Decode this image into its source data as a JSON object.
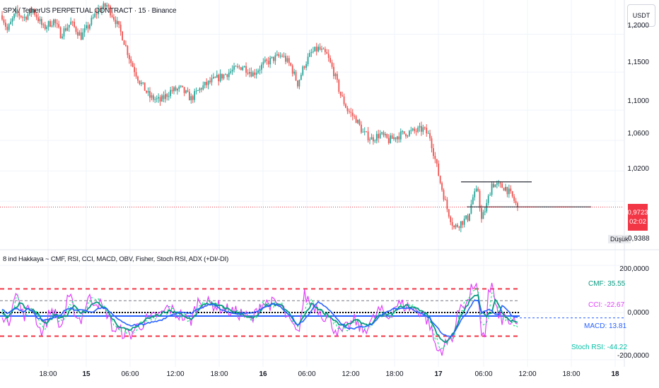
{
  "header": {
    "symbol_title": "SPX / TetherUS PERPETUAL CONTRACT · 15 · Binance",
    "currency_button": "USDT"
  },
  "price_axis": {
    "labels": [
      "1,2000",
      "1,1500",
      "1,1000",
      "1,0600",
      "1,0200",
      "0,9800"
    ],
    "current_price": "0,9723",
    "countdown": "02:02",
    "low_label": "Düşük",
    "low_value": "0,9388"
  },
  "indicator": {
    "title": "8 ind Hakkaya ~ CMF, RSI, CCI, MACD, OBV, Fisher, Stoch RSI, ADX (+DI/-DI)",
    "axis_labels": [
      "200,0000",
      "0,0000",
      "-200,0000"
    ],
    "labels": {
      "cmf": "CMF: 35.55",
      "cci": "CCI: -22.67",
      "macd": "MACD: 13.81",
      "stoch": "Stoch RSI: -44.22"
    }
  },
  "time_axis": {
    "labels": [
      "18:00",
      "15",
      "06:00",
      "12:00",
      "18:00",
      "16",
      "06:00",
      "12:00",
      "18:00",
      "17",
      "06:00",
      "12:00",
      "18:00",
      "18"
    ]
  },
  "colors": {
    "up": "#26a69a",
    "down": "#ef5350",
    "price_line": "#f23645",
    "cmf": "#089981",
    "cci": "#e040fb",
    "macd": "#2962ff",
    "stoch": "#00e676",
    "band": "#f23645"
  },
  "chart_data": {
    "type": "candlestick",
    "title": "SPX / TetherUS PERPETUAL CONTRACT · 15 · Binance",
    "interval": "15",
    "y_range": [
      0.918,
      1.245
    ],
    "y_ticks": [
      1.2,
      1.15,
      1.1,
      1.06,
      1.02,
      0.98
    ],
    "close_path": [
      {
        "t": 0,
        "p": 1.225
      },
      {
        "t": 3,
        "p": 1.205
      },
      {
        "t": 8,
        "p": 1.228
      },
      {
        "t": 13,
        "p": 1.222
      },
      {
        "t": 18,
        "p": 1.232
      },
      {
        "t": 24,
        "p": 1.208
      },
      {
        "t": 30,
        "p": 1.218
      },
      {
        "t": 34,
        "p": 1.2
      },
      {
        "t": 40,
        "p": 1.215
      },
      {
        "t": 46,
        "p": 1.197
      },
      {
        "t": 50,
        "p": 1.21
      },
      {
        "t": 56,
        "p": 1.232
      },
      {
        "t": 61,
        "p": 1.238
      },
      {
        "t": 66,
        "p": 1.218
      },
      {
        "t": 70,
        "p": 1.197
      },
      {
        "t": 75,
        "p": 1.163
      },
      {
        "t": 80,
        "p": 1.138
      },
      {
        "t": 86,
        "p": 1.117
      },
      {
        "t": 92,
        "p": 1.112
      },
      {
        "t": 98,
        "p": 1.125
      },
      {
        "t": 104,
        "p": 1.128
      },
      {
        "t": 110,
        "p": 1.115
      },
      {
        "t": 116,
        "p": 1.13
      },
      {
        "t": 122,
        "p": 1.138
      },
      {
        "t": 128,
        "p": 1.145
      },
      {
        "t": 134,
        "p": 1.152
      },
      {
        "t": 140,
        "p": 1.158
      },
      {
        "t": 146,
        "p": 1.148
      },
      {
        "t": 152,
        "p": 1.16
      },
      {
        "t": 158,
        "p": 1.168
      },
      {
        "t": 163,
        "p": 1.172
      },
      {
        "t": 168,
        "p": 1.158
      },
      {
        "t": 172,
        "p": 1.135
      },
      {
        "t": 176,
        "p": 1.16
      },
      {
        "t": 180,
        "p": 1.175
      },
      {
        "t": 184,
        "p": 1.181
      },
      {
        "t": 189,
        "p": 1.172
      },
      {
        "t": 193,
        "p": 1.15
      },
      {
        "t": 197,
        "p": 1.12
      },
      {
        "t": 201,
        "p": 1.1
      },
      {
        "t": 206,
        "p": 1.088
      },
      {
        "t": 210,
        "p": 1.07
      },
      {
        "t": 215,
        "p": 1.062
      },
      {
        "t": 220,
        "p": 1.068
      },
      {
        "t": 225,
        "p": 1.06
      },
      {
        "t": 230,
        "p": 1.066
      },
      {
        "t": 235,
        "p": 1.07
      },
      {
        "t": 240,
        "p": 1.072
      },
      {
        "t": 245,
        "p": 1.075
      },
      {
        "t": 249,
        "p": 1.065
      },
      {
        "t": 252,
        "p": 1.035
      },
      {
        "t": 255,
        "p": 1.005
      },
      {
        "t": 259,
        "p": 0.97
      },
      {
        "t": 263,
        "p": 0.945
      },
      {
        "t": 267,
        "p": 0.952
      },
      {
        "t": 271,
        "p": 0.958
      },
      {
        "t": 274,
        "p": 0.985
      },
      {
        "t": 277,
        "p": 0.995
      },
      {
        "t": 279,
        "p": 0.955
      },
      {
        "t": 282,
        "p": 0.975
      },
      {
        "t": 285,
        "p": 1.003
      },
      {
        "t": 289,
        "p": 1
      },
      {
        "t": 293,
        "p": 0.998
      },
      {
        "t": 297,
        "p": 0.985
      },
      {
        "t": 300,
        "p": 0.9723
      }
    ],
    "last_price": 0.9723,
    "low": 0.9388,
    "horizontal_levels": [
      1.0055,
      0.9725
    ],
    "indicator": {
      "name": "8 ind Hakkaya ~ CMF, RSI, CCI, MACD, OBV, Fisher, Stoch RSI, ADX (+DI/-DI)",
      "y_range": [
        -230,
        260
      ],
      "y_ticks": [
        200,
        0,
        -200
      ],
      "bands": [
        100,
        -100
      ],
      "reference_lines": [
        50,
        0,
        -15
      ],
      "series": [
        {
          "name": "CMF",
          "last": 35.55
        },
        {
          "name": "CCI",
          "last": -22.67
        },
        {
          "name": "MACD",
          "last": 13.81
        },
        {
          "name": "Stoch RSI",
          "last": -44.22
        }
      ]
    }
  }
}
